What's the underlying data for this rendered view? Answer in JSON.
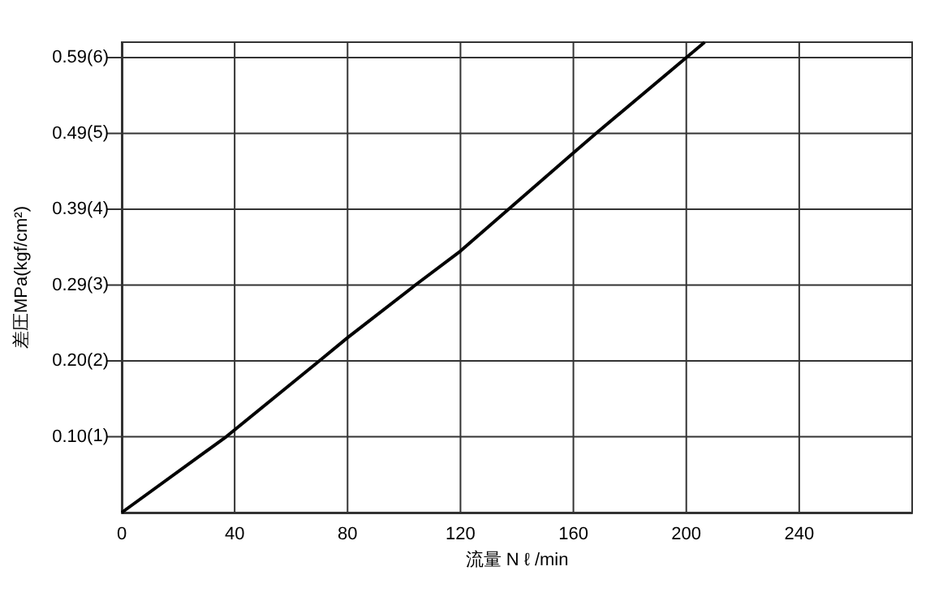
{
  "chart_data": {
    "type": "line",
    "xlabel": "流量 N ℓ /min",
    "ylabel": "差圧MPa(kgf/cm²)",
    "xlim": [
      0,
      280
    ],
    "xticks": [
      0,
      40,
      80,
      120,
      160,
      200,
      240
    ],
    "ylim": [
      0,
      0.608
    ],
    "yticks": [
      {
        "value": 0.098,
        "label": "0.10"
      },
      {
        "value": 0.196,
        "label": "0.20"
      },
      {
        "value": 0.294,
        "label": "0.29"
      },
      {
        "value": 0.392,
        "label": "0.39"
      },
      {
        "value": 0.49,
        "label": "0.49"
      },
      {
        "value": 0.588,
        "label": "0.59"
      }
    ],
    "y2lim": [
      0,
      6.2
    ],
    "y2ticks": [
      {
        "value": 1,
        "label": "(1)"
      },
      {
        "value": 2,
        "label": "(2)"
      },
      {
        "value": 3,
        "label": "(3)"
      },
      {
        "value": 4,
        "label": "(4)"
      },
      {
        "value": 5,
        "label": "(5)"
      },
      {
        "value": 6,
        "label": "(6)"
      }
    ],
    "grid": true,
    "marker": "none",
    "line_style": "solid",
    "series": [
      {
        "color": "#000000",
        "x": [
          0,
          37,
          70,
          80,
          104,
          120,
          160,
          168,
          200,
          206.5
        ],
        "values": [
          0,
          0.098,
          0.196,
          0.226,
          0.294,
          0.338,
          0.465,
          0.49,
          0.588,
          0.608
        ]
      }
    ]
  }
}
